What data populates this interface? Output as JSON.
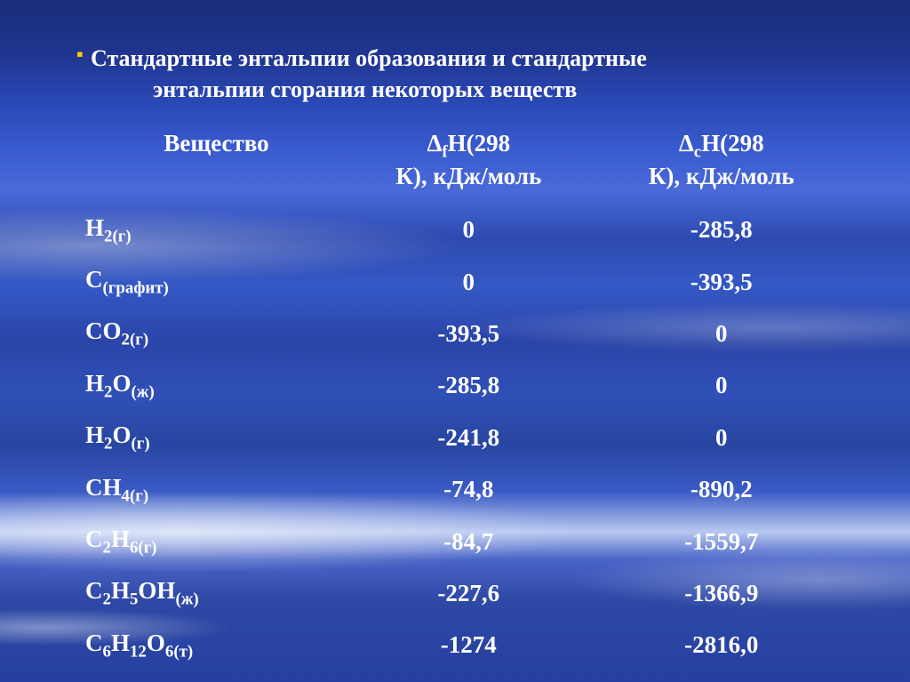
{
  "title": {
    "line1": "Стандартные энтальпии образования и стандартные",
    "line2": "энтальпии сгорания некоторых веществ"
  },
  "bullet_color": "#ffcc00",
  "text_color": "#ffffff",
  "columns": {
    "substance": "Вещество",
    "df_prefix": "Δ",
    "df_sub": "f",
    "df_rest": "H(298",
    "df_line2": "К), кДж/моль",
    "dc_prefix": "Δ",
    "dc_sub": "c",
    "dc_rest": "H(298",
    "dc_line2": "К), кДж/моль"
  },
  "rows": [
    {
      "sub_html": "H<sub>2(г)</sub>",
      "df": "0",
      "dc": "-285,8"
    },
    {
      "sub_html": "C<sub>(графит)</sub>",
      "df": "0",
      "dc": "-393,5"
    },
    {
      "sub_html": "CO<sub>2(г)</sub>",
      "df": "-393,5",
      "dc": "0"
    },
    {
      "sub_html": "H<sub>2</sub>O<sub>(ж)</sub>",
      "df": "-285,8",
      "dc": "0"
    },
    {
      "sub_html": "H<sub>2</sub>O<sub>(г)</sub>",
      "df": "-241,8",
      "dc": "0"
    },
    {
      "sub_html": "CH<sub>4(г)</sub>",
      "df": "-74,8",
      "dc": "-890,2"
    },
    {
      "sub_html": "C<sub>2</sub>H<sub>6(г)</sub>",
      "df": "-84,7",
      "dc": "-1559,7"
    },
    {
      "sub_html": "C<sub>2</sub>H<sub>5</sub>OH<sub>(ж)</sub>",
      "df": "-227,6",
      "dc": "-1366,9"
    },
    {
      "sub_html": "C<sub>6</sub>H<sub>12</sub>O<sub>6(т)</sub>",
      "df": "-1274",
      "dc": "-2816,0"
    }
  ],
  "styling": {
    "font_family": "Times New Roman",
    "title_fontsize": 26,
    "cell_fontsize": 27,
    "header_fontsize": 27,
    "font_weight": "bold",
    "background_gradient_top": "#1a2d7a",
    "background_gradient_mid": "#3558c5",
    "background_gradient_bottom": "#2540a0",
    "cloud_highlight": "#ffffff"
  }
}
